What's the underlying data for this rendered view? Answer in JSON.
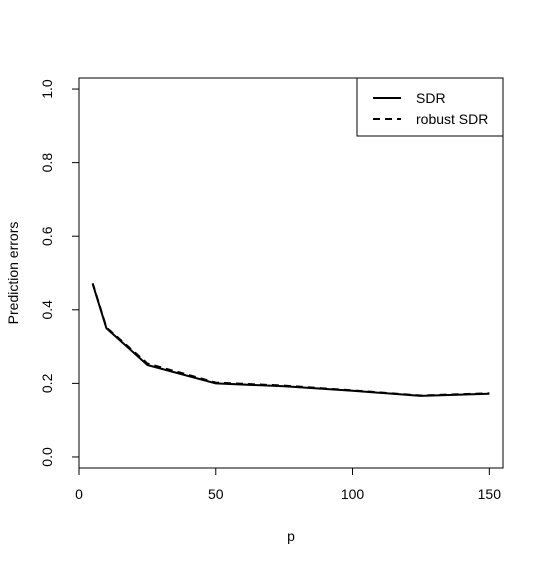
{
  "chart_data": {
    "type": "line",
    "title": "",
    "xlabel": "p",
    "ylabel": "Prediction errors",
    "xlim": [
      0,
      155
    ],
    "ylim": [
      -0.03,
      1.03
    ],
    "xticks": [
      0,
      50,
      100,
      150
    ],
    "yticks": [
      0.0,
      0.2,
      0.4,
      0.6,
      0.8,
      1.0
    ],
    "xtick_labels": [
      "0",
      "50",
      "100",
      "150"
    ],
    "ytick_labels": [
      "0.0",
      "0.2",
      "0.4",
      "0.6",
      "0.8",
      "1.0"
    ],
    "grid": false,
    "legend_position": "top-right",
    "series": [
      {
        "name": "SDR",
        "style": "solid",
        "color": "#000000",
        "x": [
          5,
          10,
          25,
          50,
          75,
          100,
          125,
          150
        ],
        "y": [
          0.47,
          0.35,
          0.25,
          0.2,
          0.192,
          0.18,
          0.166,
          0.172
        ]
      },
      {
        "name": "robust SDR",
        "style": "dashed",
        "color": "#000000",
        "x": [
          5,
          10,
          25,
          50,
          75,
          100,
          125,
          150
        ],
        "y": [
          0.472,
          0.352,
          0.254,
          0.202,
          0.194,
          0.181,
          0.167,
          0.173
        ]
      }
    ]
  }
}
